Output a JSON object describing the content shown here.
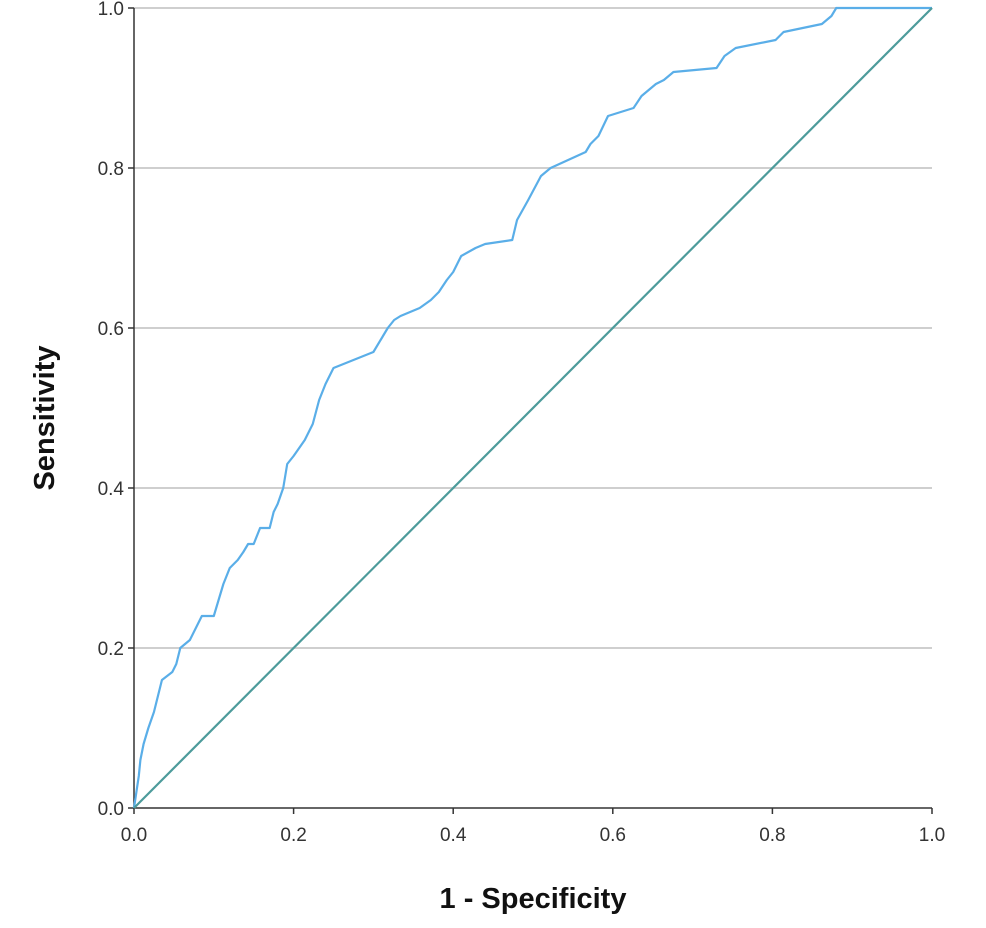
{
  "chart_data": {
    "type": "line",
    "title": "",
    "xlabel": "1 - Specificity",
    "ylabel": "Sensitivity",
    "xlim": [
      0,
      1
    ],
    "ylim": [
      0,
      1
    ],
    "x_ticks": [
      "0.0",
      "0.2",
      "0.4",
      "0.6",
      "0.8",
      "1.0"
    ],
    "y_ticks": [
      "0.0",
      "0.2",
      "0.4",
      "0.6",
      "0.8",
      "1.0"
    ],
    "grid": "horizontal",
    "legend": "none",
    "series": [
      {
        "kind": "step",
        "color": "#5aaee8",
        "points": [
          [
            0.0,
            0.0
          ],
          [
            0.003,
            0.02
          ],
          [
            0.006,
            0.04
          ],
          [
            0.008,
            0.06
          ],
          [
            0.012,
            0.08
          ],
          [
            0.018,
            0.1
          ],
          [
            0.025,
            0.12
          ],
          [
            0.03,
            0.14
          ],
          [
            0.035,
            0.16
          ],
          [
            0.048,
            0.17
          ],
          [
            0.053,
            0.18
          ],
          [
            0.058,
            0.2
          ],
          [
            0.07,
            0.21
          ],
          [
            0.085,
            0.24
          ],
          [
            0.1,
            0.24
          ],
          [
            0.106,
            0.26
          ],
          [
            0.112,
            0.28
          ],
          [
            0.12,
            0.3
          ],
          [
            0.13,
            0.31
          ],
          [
            0.137,
            0.32
          ],
          [
            0.143,
            0.33
          ],
          [
            0.15,
            0.33
          ],
          [
            0.158,
            0.35
          ],
          [
            0.17,
            0.35
          ],
          [
            0.175,
            0.37
          ],
          [
            0.18,
            0.38
          ],
          [
            0.187,
            0.4
          ],
          [
            0.192,
            0.43
          ],
          [
            0.2,
            0.44
          ],
          [
            0.207,
            0.45
          ],
          [
            0.214,
            0.46
          ],
          [
            0.224,
            0.48
          ],
          [
            0.232,
            0.51
          ],
          [
            0.24,
            0.53
          ],
          [
            0.25,
            0.55
          ],
          [
            0.3,
            0.57
          ],
          [
            0.312,
            0.59
          ],
          [
            0.318,
            0.6
          ],
          [
            0.326,
            0.61
          ],
          [
            0.334,
            0.615
          ],
          [
            0.358,
            0.625
          ],
          [
            0.372,
            0.635
          ],
          [
            0.382,
            0.645
          ],
          [
            0.392,
            0.66
          ],
          [
            0.4,
            0.67
          ],
          [
            0.41,
            0.69
          ],
          [
            0.428,
            0.7
          ],
          [
            0.44,
            0.705
          ],
          [
            0.474,
            0.71
          ],
          [
            0.48,
            0.735
          ],
          [
            0.494,
            0.76
          ],
          [
            0.51,
            0.79
          ],
          [
            0.522,
            0.8
          ],
          [
            0.566,
            0.82
          ],
          [
            0.572,
            0.83
          ],
          [
            0.582,
            0.84
          ],
          [
            0.594,
            0.865
          ],
          [
            0.626,
            0.875
          ],
          [
            0.636,
            0.89
          ],
          [
            0.654,
            0.905
          ],
          [
            0.664,
            0.91
          ],
          [
            0.676,
            0.92
          ],
          [
            0.73,
            0.925
          ],
          [
            0.74,
            0.94
          ],
          [
            0.754,
            0.95
          ],
          [
            0.804,
            0.96
          ],
          [
            0.814,
            0.97
          ],
          [
            0.862,
            0.98
          ],
          [
            0.874,
            0.99
          ],
          [
            0.88,
            1.0
          ],
          [
            0.91,
            1.0
          ],
          [
            1.0,
            1.0
          ]
        ]
      },
      {
        "kind": "reference",
        "color": "#4d9b9b",
        "points": [
          [
            0.0,
            0.0
          ],
          [
            1.0,
            1.0
          ]
        ]
      }
    ]
  }
}
